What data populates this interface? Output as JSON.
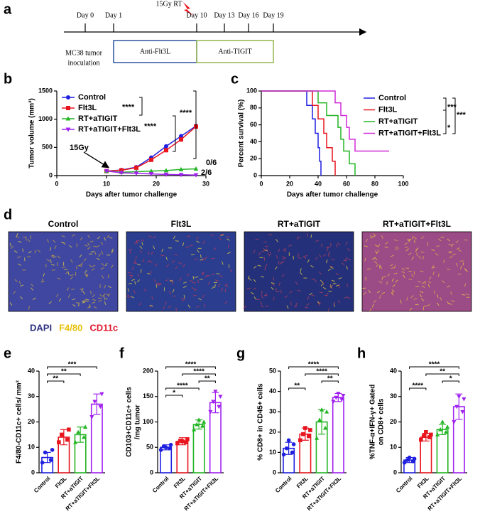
{
  "panel_labels": [
    "a",
    "b",
    "c",
    "d",
    "e",
    "f",
    "g",
    "h"
  ],
  "timeline": {
    "treatment": "15Gy RT",
    "days": [
      "Day 0",
      "Day 1",
      "Day 10",
      "Day 13",
      "Day 16",
      "Day 19"
    ],
    "inoculation": [
      "MC38 tumor",
      "inoculation"
    ],
    "phases": [
      {
        "label": "Anti-Flt3L",
        "color": "#3b5ea8"
      },
      {
        "label": "Anti-TIGIT",
        "color": "#9bbb59"
      }
    ]
  },
  "images": {
    "titles": [
      "Control",
      "Flt3L",
      "RT+aTIGIT",
      "RT+aTIGIT+Flt3L"
    ],
    "stain_legend": [
      {
        "label": "DAPI",
        "color": "#2e2f80"
      },
      {
        "label": "F4/80",
        "color": "#e9c20c"
      },
      {
        "label": "CD11c",
        "color": "#e0182e"
      }
    ]
  },
  "chart_data": [
    {
      "type": "line",
      "ylabel": "Tumor volume (mm³)",
      "xlabel": "Days after tumor challenge",
      "x": [
        10,
        13,
        16,
        19,
        22,
        25,
        28
      ],
      "xlim": [
        0,
        30
      ],
      "xticks": [
        0,
        10,
        20,
        30
      ],
      "ylim": [
        0,
        1500
      ],
      "yticks": [
        0,
        500,
        1000,
        1500
      ],
      "series": [
        {
          "name": "Control",
          "color": "#1f1fe0",
          "marker": "circle",
          "values": [
            80,
            100,
            150,
            320,
            520,
            700,
            880
          ]
        },
        {
          "name": "Flt3L",
          "color": "#e8141e",
          "marker": "square",
          "values": [
            80,
            95,
            140,
            280,
            450,
            640,
            870
          ]
        },
        {
          "name": "RT+aTIGIT",
          "color": "#23b523",
          "marker": "triangle",
          "values": [
            80,
            60,
            70,
            80,
            90,
            110,
            120
          ]
        },
        {
          "name": "RT+aTIGIT+Flt3L",
          "color": "#a020f0",
          "marker": "invtriangle",
          "values": [
            80,
            50,
            40,
            30,
            20,
            15,
            10
          ]
        }
      ],
      "annotations": [
        "15Gy",
        "0/6",
        "2/6"
      ],
      "significance": [
        "****",
        "****",
        "****"
      ]
    },
    {
      "type": "step",
      "ylabel": "Percent survival (%)",
      "xlabel": "Days after tumor challenge",
      "xlim": [
        0,
        100
      ],
      "xticks": [
        0,
        20,
        40,
        60,
        80,
        100
      ],
      "ylim": [
        0,
        100
      ],
      "yticks": [
        0,
        20,
        40,
        60,
        80,
        100
      ],
      "series": [
        {
          "name": "Control",
          "color": "#1f1fe0",
          "x": [
            0,
            32,
            32,
            36,
            36,
            38,
            38,
            40,
            40,
            41,
            41,
            42,
            42
          ],
          "values": [
            100,
            100,
            83,
            83,
            67,
            67,
            50,
            50,
            33,
            33,
            17,
            17,
            0
          ]
        },
        {
          "name": "Flt3L",
          "color": "#e8141e",
          "x": [
            0,
            36,
            36,
            40,
            40,
            44,
            44,
            46,
            46,
            50,
            50,
            52,
            52
          ],
          "values": [
            100,
            100,
            83,
            83,
            67,
            67,
            50,
            50,
            33,
            33,
            17,
            17,
            0
          ]
        },
        {
          "name": "RT+aTIGIT",
          "color": "#23b523",
          "x": [
            0,
            40,
            40,
            46,
            46,
            54,
            54,
            56,
            56,
            58,
            58,
            62,
            62,
            66,
            66
          ],
          "values": [
            100,
            100,
            86,
            86,
            71,
            71,
            57,
            57,
            43,
            43,
            29,
            29,
            14,
            14,
            0
          ]
        },
        {
          "name": "RT+aTIGIT+Flt3L",
          "color": "#d02ad8",
          "x": [
            0,
            52,
            52,
            56,
            56,
            60,
            60,
            62,
            62,
            66,
            66,
            90
          ],
          "values": [
            100,
            100,
            86,
            86,
            71,
            71,
            57,
            57,
            43,
            43,
            29,
            29
          ]
        }
      ],
      "significance": [
        "***",
        "***",
        "*"
      ]
    },
    {
      "type": "bar",
      "ylabel": [
        "F4/80-CD11c+ cells/ mm²"
      ],
      "categories": [
        "Control",
        "Flt3L",
        "RT+aTIGIT",
        "RT+aTIGIT+Flt3L"
      ],
      "colors": [
        "#1f1fe0",
        "#e8141e",
        "#23b523",
        "#a020f0"
      ],
      "markers": [
        "circle",
        "square",
        "triangle",
        "invtriangle"
      ],
      "values": [
        6,
        14,
        15,
        27
      ],
      "errors": [
        2,
        3,
        3,
        4
      ],
      "points": [
        [
          4,
          5,
          8,
          9
        ],
        [
          12,
          13,
          15,
          17
        ],
        [
          12,
          14,
          16,
          18
        ],
        [
          22,
          26,
          28,
          31
        ]
      ],
      "ylim": [
        0,
        40
      ],
      "yticks": [
        0,
        10,
        20,
        30,
        40
      ],
      "comparisons": [
        {
          "groups": [
            0,
            3
          ],
          "label": "***"
        },
        {
          "groups": [
            0,
            2
          ],
          "label": "**"
        },
        {
          "groups": [
            0,
            1
          ],
          "label": "**"
        }
      ]
    },
    {
      "type": "bar",
      "ylabel": [
        "CD103+CD11c+ cells",
        "/mg tumor"
      ],
      "categories": [
        "Control",
        "Flt3L",
        "RT+aTIGIT",
        "RT+aTIGIT+Flt3L"
      ],
      "colors": [
        "#1f1fe0",
        "#e8141e",
        "#23b523",
        "#a020f0"
      ],
      "markers": [
        "circle",
        "square",
        "triangle",
        "invtriangle"
      ],
      "values": [
        50,
        62,
        95,
        138
      ],
      "errors": [
        5,
        7,
        9,
        20
      ],
      "points": [
        [
          45,
          48,
          52,
          55,
          50
        ],
        [
          58,
          60,
          63,
          66,
          62
        ],
        [
          85,
          92,
          95,
          100,
          104
        ],
        [
          120,
          130,
          140,
          150,
          160
        ]
      ],
      "ylim": [
        0,
        200
      ],
      "yticks": [
        0,
        50,
        100,
        150,
        200
      ],
      "comparisons": [
        {
          "groups": [
            0,
            3
          ],
          "label": "****"
        },
        {
          "groups": [
            1,
            3
          ],
          "label": "****"
        },
        {
          "groups": [
            2,
            3
          ],
          "label": "**"
        },
        {
          "groups": [
            0,
            2
          ],
          "label": "****"
        },
        {
          "groups": [
            0,
            1
          ],
          "label": "*"
        }
      ]
    },
    {
      "type": "bar",
      "ylabel": [
        "% CD8+ in CD45+ cells"
      ],
      "categories": [
        "Control",
        "Flt3L",
        "RT+aTIGIT",
        "RT+aTIGIT+Flt3L"
      ],
      "colors": [
        "#1f1fe0",
        "#e8141e",
        "#23b523",
        "#a020f0"
      ],
      "markers": [
        "circle",
        "square",
        "triangle",
        "invtriangle"
      ],
      "values": [
        12,
        19,
        25,
        37
      ],
      "errors": [
        3,
        3,
        6,
        2
      ],
      "points": [
        [
          9,
          10,
          12,
          14,
          16
        ],
        [
          16,
          18,
          19,
          21,
          22
        ],
        [
          17,
          22,
          26,
          30,
          31
        ],
        [
          35,
          36,
          37,
          38,
          39
        ]
      ],
      "ylim": [
        0,
        50
      ],
      "yticks": [
        0,
        10,
        20,
        30,
        40,
        50
      ],
      "comparisons": [
        {
          "groups": [
            0,
            3
          ],
          "label": "****"
        },
        {
          "groups": [
            1,
            3
          ],
          "label": "****"
        },
        {
          "groups": [
            2,
            3
          ],
          "label": "**"
        },
        {
          "groups": [
            0,
            1
          ],
          "label": "**"
        }
      ]
    },
    {
      "type": "bar",
      "ylabel": [
        "%TNF-α+IFN-γ+ Gated",
        "on CD8+ cells"
      ],
      "categories": [
        "Control",
        "Flt3L",
        "RT+aTIGIT",
        "RT+aTIGIT+Flt3L"
      ],
      "colors": [
        "#1f1fe0",
        "#e8141e",
        "#23b523",
        "#a020f0"
      ],
      "markers": [
        "circle",
        "square",
        "triangle",
        "invtriangle"
      ],
      "values": [
        5,
        14,
        17,
        26
      ],
      "errors": [
        1,
        1.5,
        2,
        5
      ],
      "points": [
        [
          4,
          4.5,
          5,
          5.5,
          6
        ],
        [
          13,
          14,
          14.5,
          15,
          16
        ],
        [
          15,
          16,
          17,
          18,
          20
        ],
        [
          20,
          24,
          26,
          29,
          30
        ]
      ],
      "ylim": [
        0,
        40
      ],
      "yticks": [
        0,
        10,
        20,
        30,
        40
      ],
      "comparisons": [
        {
          "groups": [
            0,
            3
          ],
          "label": "****"
        },
        {
          "groups": [
            1,
            3
          ],
          "label": "**"
        },
        {
          "groups": [
            2,
            3
          ],
          "label": "*"
        },
        {
          "groups": [
            0,
            1
          ],
          "label": "****"
        }
      ]
    }
  ]
}
